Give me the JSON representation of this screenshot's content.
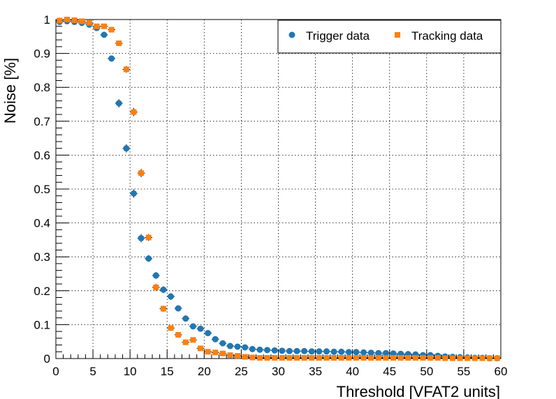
{
  "chart_data": {
    "type": "scatter",
    "xlabel": "Threshold [VFAT2 units]",
    "ylabel": "Noise [%]",
    "xlim": [
      0,
      60
    ],
    "ylim": [
      0,
      1
    ],
    "xticks": [
      "0",
      "5",
      "10",
      "15",
      "20",
      "25",
      "30",
      "35",
      "40",
      "45",
      "50",
      "55",
      "60"
    ],
    "yticks": [
      "0",
      "0.1",
      "0.2",
      "0.3",
      "0.4",
      "0.5",
      "0.6",
      "0.7",
      "0.8",
      "0.9",
      "1"
    ],
    "grid": true,
    "legend_position": "top-right",
    "series": [
      {
        "name": "Trigger data",
        "marker": "circle",
        "color": "#1f77b4",
        "x": [
          0.5,
          1.5,
          2.5,
          3.5,
          4.5,
          5.5,
          6.5,
          7.5,
          8.5,
          9.5,
          10.5,
          11.5,
          12.5,
          13.5,
          14.5,
          15.5,
          16.5,
          17.5,
          18.5,
          19.5,
          20.5,
          21.5,
          22.5,
          23.5,
          24.5,
          25.5,
          26.5,
          27.5,
          28.5,
          29.5,
          30.5,
          31.5,
          32.5,
          33.5,
          34.5,
          35.5,
          36.5,
          37.5,
          38.5,
          39.5,
          40.5,
          41.5,
          42.5,
          43.5,
          44.5,
          45.5,
          46.5,
          47.5,
          48.5,
          49.5,
          50.5,
          51.5,
          52.5,
          53.5,
          54.5,
          55.5,
          56.5,
          57.5,
          58.5,
          59.5
        ],
        "y": [
          0.993,
          0.995,
          0.993,
          0.99,
          0.985,
          0.975,
          0.955,
          0.885,
          0.753,
          0.62,
          0.487,
          0.355,
          0.295,
          0.245,
          0.203,
          0.183,
          0.148,
          0.118,
          0.095,
          0.088,
          0.075,
          0.057,
          0.045,
          0.037,
          0.035,
          0.033,
          0.028,
          0.026,
          0.025,
          0.024,
          0.023,
          0.022,
          0.022,
          0.022,
          0.021,
          0.021,
          0.021,
          0.02,
          0.02,
          0.019,
          0.019,
          0.018,
          0.017,
          0.016,
          0.016,
          0.015,
          0.014,
          0.013,
          0.012,
          0.01,
          0.01,
          0.008,
          0.006,
          0.005,
          0.004,
          0.003,
          0.002,
          0.002,
          0.001,
          0.001
        ],
        "yerr": [
          0.004,
          0.004,
          0.004,
          0.004,
          0.004,
          0.005,
          0.006,
          0.008,
          0.012,
          0.012,
          0.012,
          0.012,
          0.01,
          0.01,
          0.01,
          0.01,
          0.009,
          0.008,
          0.007,
          0.007,
          0.006,
          0.005,
          0.004,
          0.004,
          0.004,
          0.003,
          0.003,
          0.003,
          0.003,
          0.003,
          0.003,
          0.003,
          0.003,
          0.003,
          0.003,
          0.003,
          0.003,
          0.003,
          0.003,
          0.003,
          0.003,
          0.003,
          0.003,
          0.003,
          0.003,
          0.003,
          0.003,
          0.003,
          0.003,
          0.003,
          0.003,
          0.003,
          0.002,
          0.002,
          0.002,
          0.002,
          0.002,
          0.002,
          0.002,
          0.002
        ]
      },
      {
        "name": "Tracking data",
        "marker": "square",
        "color": "#ff7f0e",
        "x": [
          0.5,
          1.5,
          2.5,
          3.5,
          4.5,
          5.5,
          6.5,
          7.5,
          8.5,
          9.5,
          10.5,
          11.5,
          12.5,
          13.5,
          14.5,
          15.5,
          16.5,
          17.5,
          18.5,
          19.5,
          20.5,
          21.5,
          22.5,
          23.5,
          24.5,
          25.5,
          26.5,
          27.5,
          28.5,
          29.5,
          30.5,
          31.5,
          32.5,
          33.5,
          34.5,
          35.5,
          36.5,
          37.5,
          38.5,
          39.5,
          40.5,
          41.5,
          42.5,
          43.5,
          44.5,
          45.5,
          46.5,
          47.5,
          48.5,
          49.5,
          50.5,
          51.5,
          52.5,
          53.5,
          54.5,
          55.5,
          56.5,
          57.5,
          58.5,
          59.5
        ],
        "y": [
          0.997,
          1.0,
          0.998,
          0.995,
          0.99,
          0.98,
          0.98,
          0.97,
          0.93,
          0.853,
          0.727,
          0.547,
          0.357,
          0.21,
          0.147,
          0.09,
          0.07,
          0.048,
          0.055,
          0.03,
          0.02,
          0.018,
          0.015,
          0.01,
          0.008,
          0.005,
          0.003,
          0.002,
          0.002,
          0.002,
          0.002,
          0.002,
          0.002,
          0.002,
          0.002,
          0.002,
          0.002,
          0.002,
          0.002,
          0.002,
          0.002,
          0.002,
          0.002,
          0.002,
          0.002,
          0.002,
          0.002,
          0.002,
          0.002,
          0.002,
          0.002,
          0.002,
          0.001,
          0.001,
          0.001,
          0.001,
          0.001,
          0.001,
          0.001,
          0.001
        ],
        "yerr": [
          0.004,
          0.004,
          0.004,
          0.004,
          0.004,
          0.005,
          0.005,
          0.006,
          0.008,
          0.01,
          0.012,
          0.012,
          0.01,
          0.01,
          0.009,
          0.007,
          0.006,
          0.005,
          0.005,
          0.004,
          0.004,
          0.003,
          0.003,
          0.003,
          0.002,
          0.002,
          0.002,
          0.002,
          0.002,
          0.002,
          0.002,
          0.002,
          0.002,
          0.002,
          0.002,
          0.002,
          0.002,
          0.002,
          0.002,
          0.002,
          0.002,
          0.002,
          0.002,
          0.002,
          0.002,
          0.002,
          0.002,
          0.002,
          0.002,
          0.002,
          0.002,
          0.002,
          0.002,
          0.002,
          0.002,
          0.002,
          0.002,
          0.002,
          0.002,
          0.002
        ]
      }
    ]
  }
}
